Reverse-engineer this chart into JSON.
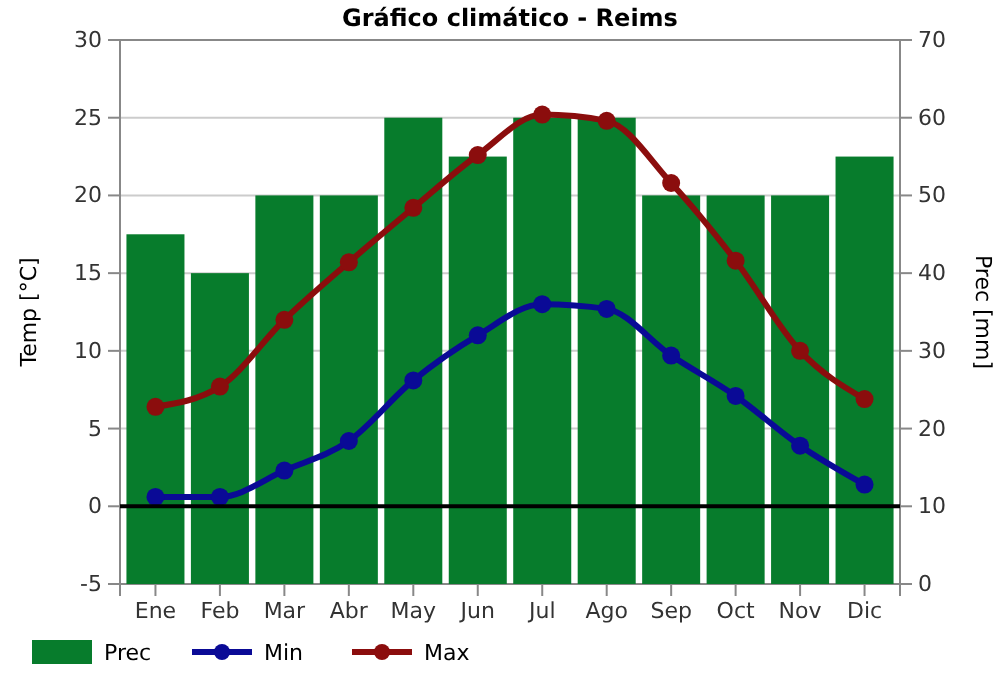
{
  "chart_data": {
    "type": "line",
    "title": "Gráfico climático - Reims",
    "ylabel": "Temp [°C]",
    "y2label": "Prec [mm]",
    "categories": [
      "Ene",
      "Feb",
      "Mar",
      "Abr",
      "May",
      "Jun",
      "Jul",
      "Ago",
      "Sep",
      "Oct",
      "Nov",
      "Dic"
    ],
    "series": [
      {
        "name": "Prec",
        "type": "bar",
        "axis": "y2",
        "color": "#077c2c",
        "values": [
          45,
          40,
          50,
          50,
          60,
          55,
          60,
          60,
          50,
          50,
          50,
          55
        ]
      },
      {
        "name": "Min",
        "color": "#0a0a96",
        "values": [
          0.6,
          0.6,
          2.3,
          4.2,
          8.1,
          11.0,
          13.0,
          12.7,
          9.7,
          7.1,
          3.9,
          1.4
        ]
      },
      {
        "name": "Max",
        "color": "#8b0d0d",
        "values": [
          6.4,
          7.7,
          12.0,
          15.7,
          19.2,
          22.6,
          25.2,
          24.8,
          20.8,
          15.8,
          10.0,
          6.9
        ]
      }
    ],
    "ylim": [
      -5,
      30
    ],
    "yticks": [
      -5,
      0,
      5,
      10,
      15,
      20,
      25,
      30
    ],
    "y2lim": [
      0,
      70
    ],
    "y2ticks": [
      0,
      10,
      20,
      30,
      40,
      50,
      60,
      70
    ],
    "ref_lines": [
      {
        "axis": "y",
        "value": 0,
        "color": "#000000"
      }
    ],
    "grid": "y",
    "legend": "bottom left",
    "marker": "circle"
  }
}
